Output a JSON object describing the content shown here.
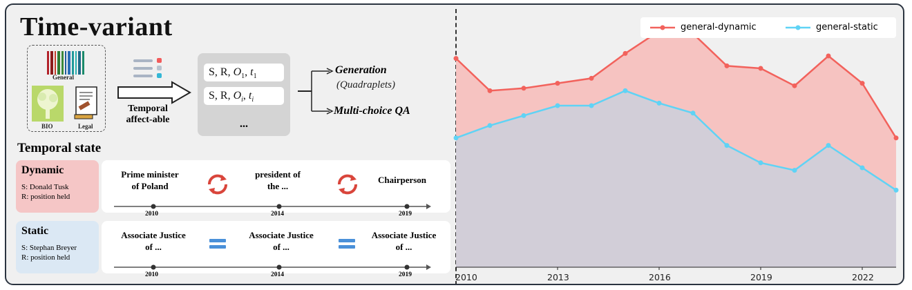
{
  "header": {
    "title": "Time-variant"
  },
  "domains": {
    "general": "General",
    "bio": "BIO",
    "legal": "Legal"
  },
  "arrow_label": {
    "line1": "Temporal",
    "line2": "affect-able"
  },
  "quadruplets": {
    "dots": "..."
  },
  "outputs": {
    "generation": "Generation",
    "generation_sub": "(Quadraplets)",
    "qa": "Multi-choice QA"
  },
  "temporal_state": {
    "title": "Temporal state",
    "dynamic": {
      "label": "Dynamic",
      "subject": "S: Donald Tusk",
      "relation": "R: position held",
      "events": [
        {
          "line1": "Prime minister",
          "line2": "of Poland"
        },
        {
          "line1": "president of",
          "line2": "the ..."
        },
        {
          "line1": "Chairperson",
          "line2": ""
        }
      ],
      "years": [
        "2010",
        "2014",
        "2019"
      ]
    },
    "static": {
      "label": "Static",
      "subject": "S: Stephan Breyer",
      "relation": "R: position held",
      "events": [
        {
          "line1": "Associate Justice",
          "line2": "of ..."
        },
        {
          "line1": "Associate Justice",
          "line2": "of ..."
        },
        {
          "line1": "Associate Justice",
          "line2": "of ..."
        }
      ],
      "years": [
        "2010",
        "2014",
        "2019"
      ]
    }
  },
  "colors": {
    "dynamic_line": "#f2625c",
    "dynamic_fill": "#f6c3c1",
    "static_line": "#5fd3f5",
    "static_fill": "#d2ced8",
    "dynamic_card": "#f5c6c6",
    "static_card": "#dbe8f4"
  },
  "chart_data": {
    "type": "area",
    "x": [
      2010,
      2011,
      2012,
      2013,
      2014,
      2015,
      2016,
      2017,
      2018,
      2019,
      2020,
      2021,
      2022,
      2023
    ],
    "series": [
      {
        "name": "general-dynamic",
        "values": [
          0.84,
          0.71,
          0.72,
          0.74,
          0.76,
          0.86,
          0.95,
          0.94,
          0.81,
          0.8,
          0.73,
          0.85,
          0.74,
          0.52
        ]
      },
      {
        "name": "general-static",
        "values": [
          0.52,
          0.57,
          0.61,
          0.65,
          0.65,
          0.71,
          0.66,
          0.62,
          0.49,
          0.42,
          0.39,
          0.49,
          0.4,
          0.31
        ]
      }
    ],
    "xticks": [
      2010,
      2013,
      2016,
      2019,
      2022
    ],
    "xlim": [
      2010,
      2023
    ],
    "ylim": [
      0.0,
      1.0
    ],
    "legend": "top-right",
    "grid": false
  }
}
